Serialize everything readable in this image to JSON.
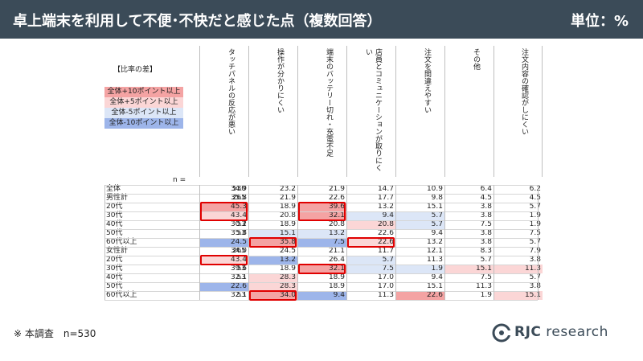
{
  "title": "卓上端末を利用して不便･不快だと感じた点（複数回答）",
  "unit": "単位：%",
  "legend": {
    "title": "【比率の差】",
    "items": [
      {
        "label": "全体+10ポイント以上",
        "color": "#f4a3a3"
      },
      {
        "label": "全体+5ポイント以上",
        "color": "#fbd6d6"
      },
      {
        "label": "全体-5ポイント以上",
        "color": "#dce6f7"
      },
      {
        "label": "全体-10ポイント以上",
        "color": "#9db5ea"
      }
    ]
  },
  "n_label": "n =",
  "columns": [
    "タッチパネルの反応が悪い",
    "操作が分かりにくい",
    "端末のバッテリー切れ・充電不足",
    "店員とコミュニケーションが取りにくい",
    "注文を間違えやすい",
    "その他",
    "注文内容の確認がしにくい"
  ],
  "rows": [
    {
      "label": "全体",
      "n": "530",
      "values": [
        "34.9",
        "23.2",
        "21.9",
        "14.7",
        "10.9",
        "6.4",
        "6.2"
      ]
    },
    {
      "label": "男性計",
      "n": "265",
      "values": [
        "35.8",
        "21.9",
        "22.6",
        "17.7",
        "9.8",
        "4.5",
        "4.5"
      ]
    },
    {
      "label": "20代",
      "n": "53",
      "values": [
        "45.3",
        "18.9",
        "39.6",
        "13.2",
        "15.1",
        "3.8",
        "5.7"
      ]
    },
    {
      "label": "30代",
      "n": "53",
      "values": [
        "43.4",
        "20.8",
        "32.1",
        "9.4",
        "5.7",
        "3.8",
        "1.9"
      ]
    },
    {
      "label": "40代",
      "n": "53",
      "values": [
        "30.2",
        "18.9",
        "20.8",
        "20.8",
        "5.7",
        "7.5",
        "1.9"
      ]
    },
    {
      "label": "50代",
      "n": "53",
      "values": [
        "35.8",
        "15.1",
        "13.2",
        "22.6",
        "9.4",
        "3.8",
        "7.5"
      ]
    },
    {
      "label": "60代以上",
      "n": "53",
      "values": [
        "24.5",
        "35.8",
        "7.5",
        "22.6",
        "13.2",
        "3.8",
        "5.7"
      ]
    },
    {
      "label": "女性計",
      "n": "265",
      "values": [
        "34.0",
        "24.5",
        "21.1",
        "11.7",
        "12.1",
        "8.3",
        "7.9"
      ]
    },
    {
      "label": "20代",
      "n": "53",
      "values": [
        "43.4",
        "13.2",
        "26.4",
        "5.7",
        "11.3",
        "5.7",
        "3.8"
      ]
    },
    {
      "label": "30代",
      "n": "53",
      "values": [
        "39.6",
        "18.9",
        "32.1",
        "7.5",
        "1.9",
        "15.1",
        "11.3"
      ]
    },
    {
      "label": "40代",
      "n": "53",
      "values": [
        "32.1",
        "28.3",
        "18.9",
        "17.0",
        "9.4",
        "7.5",
        "5.7"
      ]
    },
    {
      "label": "50代",
      "n": "53",
      "values": [
        "22.6",
        "28.3",
        "18.9",
        "17.0",
        "15.1",
        "11.3",
        "3.8"
      ]
    },
    {
      "label": "60代以上",
      "n": "53",
      "values": [
        "32.1",
        "34.0",
        "9.4",
        "11.3",
        "22.6",
        "1.9",
        "15.1"
      ]
    }
  ],
  "cell_shading": [
    {
      "row": 2,
      "col": 0,
      "level": "plus10"
    },
    {
      "row": 2,
      "col": 2,
      "level": "plus10"
    },
    {
      "row": 3,
      "col": 0,
      "level": "plus5"
    },
    {
      "row": 3,
      "col": 2,
      "level": "plus10"
    },
    {
      "row": 3,
      "col": 3,
      "level": "minus5"
    },
    {
      "row": 3,
      "col": 4,
      "level": "minus5"
    },
    {
      "row": 4,
      "col": 3,
      "level": "plus5"
    },
    {
      "row": 4,
      "col": 4,
      "level": "minus5"
    },
    {
      "row": 5,
      "col": 1,
      "level": "minus5"
    },
    {
      "row": 5,
      "col": 2,
      "level": "minus5"
    },
    {
      "row": 6,
      "col": 0,
      "level": "minus10"
    },
    {
      "row": 6,
      "col": 1,
      "level": "plus10"
    },
    {
      "row": 6,
      "col": 2,
      "level": "minus10"
    },
    {
      "row": 6,
      "col": 3,
      "level": "plus5"
    },
    {
      "row": 8,
      "col": 0,
      "level": "plus5"
    },
    {
      "row": 8,
      "col": 1,
      "level": "minus10"
    },
    {
      "row": 8,
      "col": 3,
      "level": "minus5"
    },
    {
      "row": 9,
      "col": 2,
      "level": "plus10"
    },
    {
      "row": 9,
      "col": 3,
      "level": "minus5"
    },
    {
      "row": 9,
      "col": 4,
      "level": "minus5"
    },
    {
      "row": 9,
      "col": 5,
      "level": "plus5"
    },
    {
      "row": 9,
      "col": 6,
      "level": "plus5"
    },
    {
      "row": 10,
      "col": 1,
      "level": "plus5"
    },
    {
      "row": 11,
      "col": 0,
      "level": "minus10"
    },
    {
      "row": 11,
      "col": 1,
      "level": "plus5"
    },
    {
      "row": 12,
      "col": 1,
      "level": "plus10"
    },
    {
      "row": 12,
      "col": 2,
      "level": "minus10"
    },
    {
      "row": 12,
      "col": 4,
      "level": "plus10"
    },
    {
      "row": 12,
      "col": 6,
      "level": "plus5"
    }
  ],
  "highlighted_cells": [
    {
      "row": 2,
      "col": 0
    },
    {
      "row": 3,
      "col": 0
    },
    {
      "row": 2,
      "col": 2
    },
    {
      "row": 3,
      "col": 2
    },
    {
      "row": 6,
      "col": 1
    },
    {
      "row": 6,
      "col": 3
    },
    {
      "row": 8,
      "col": 0
    },
    {
      "row": 9,
      "col": 2
    },
    {
      "row": 12,
      "col": 1
    }
  ],
  "footnote": "※ 本調査　n=530",
  "logo": {
    "text_bold": "RJC",
    "text": " research",
    "color": "#3b4b58"
  }
}
